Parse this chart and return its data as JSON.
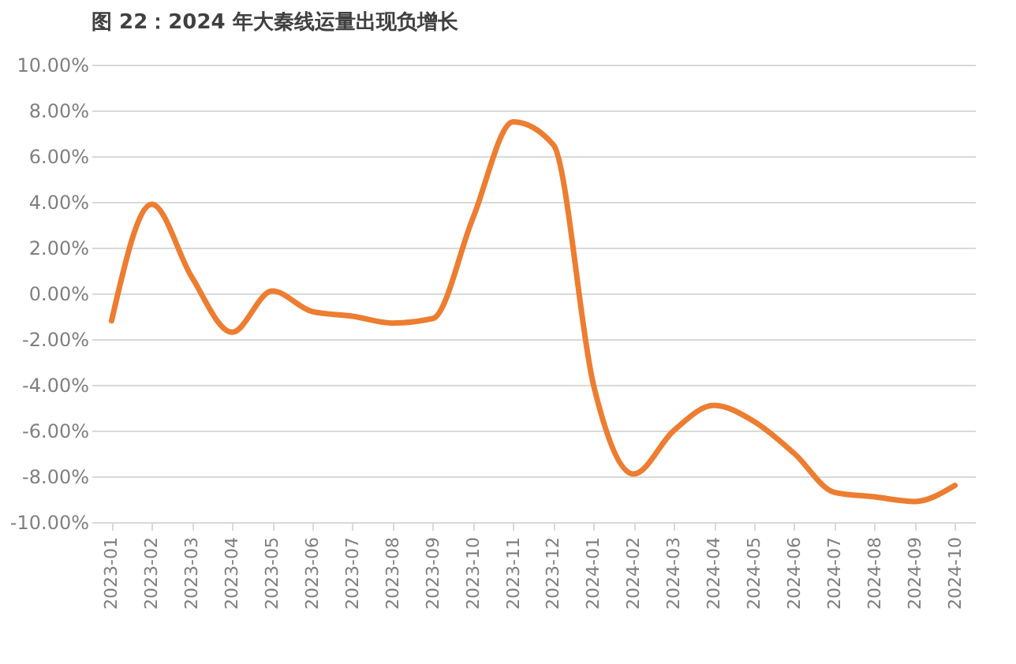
{
  "chart_data": {
    "type": "line",
    "title": "图 22：2024 年大秦线运量出现负增长",
    "categories": [
      "2023-01",
      "2023-02",
      "2023-03",
      "2023-04",
      "2023-05",
      "2023-06",
      "2023-07",
      "2023-08",
      "2023-09",
      "2023-10",
      "2023-11",
      "2023-12",
      "2024-01",
      "2024-02",
      "2024-03",
      "2024-04",
      "2024-05",
      "2024-06",
      "2024-07",
      "2024-08",
      "2024-09",
      "2024-10"
    ],
    "series": [
      {
        "color": "#ed7d31",
        "values": [
          -1.2,
          3.9,
          0.7,
          -1.7,
          0.1,
          -0.8,
          -1.0,
          -1.3,
          -1.1,
          3.3,
          7.5,
          6.5,
          -4.0,
          -7.9,
          -6.0,
          -4.9,
          -5.6,
          -7.0,
          -8.7,
          -8.9,
          -9.1,
          -8.4
        ]
      }
    ],
    "ylim": [
      -10,
      10
    ],
    "yticks": [
      {
        "value": -10,
        "label": "-10.00%"
      },
      {
        "value": -8,
        "label": "-8.00%"
      },
      {
        "value": -6,
        "label": "-6.00%"
      },
      {
        "value": -4,
        "label": "-4.00%"
      },
      {
        "value": -2,
        "label": "-2.00%"
      },
      {
        "value": 0,
        "label": "0.00%"
      },
      {
        "value": 2,
        "label": "2.00%"
      },
      {
        "value": 4,
        "label": "4.00%"
      },
      {
        "value": 6,
        "label": "6.00%"
      },
      {
        "value": 8,
        "label": "8.00%"
      },
      {
        "value": 10,
        "label": "10.00%"
      }
    ],
    "grid": "y",
    "legend": false,
    "marker": "none",
    "line_style": "solid"
  }
}
